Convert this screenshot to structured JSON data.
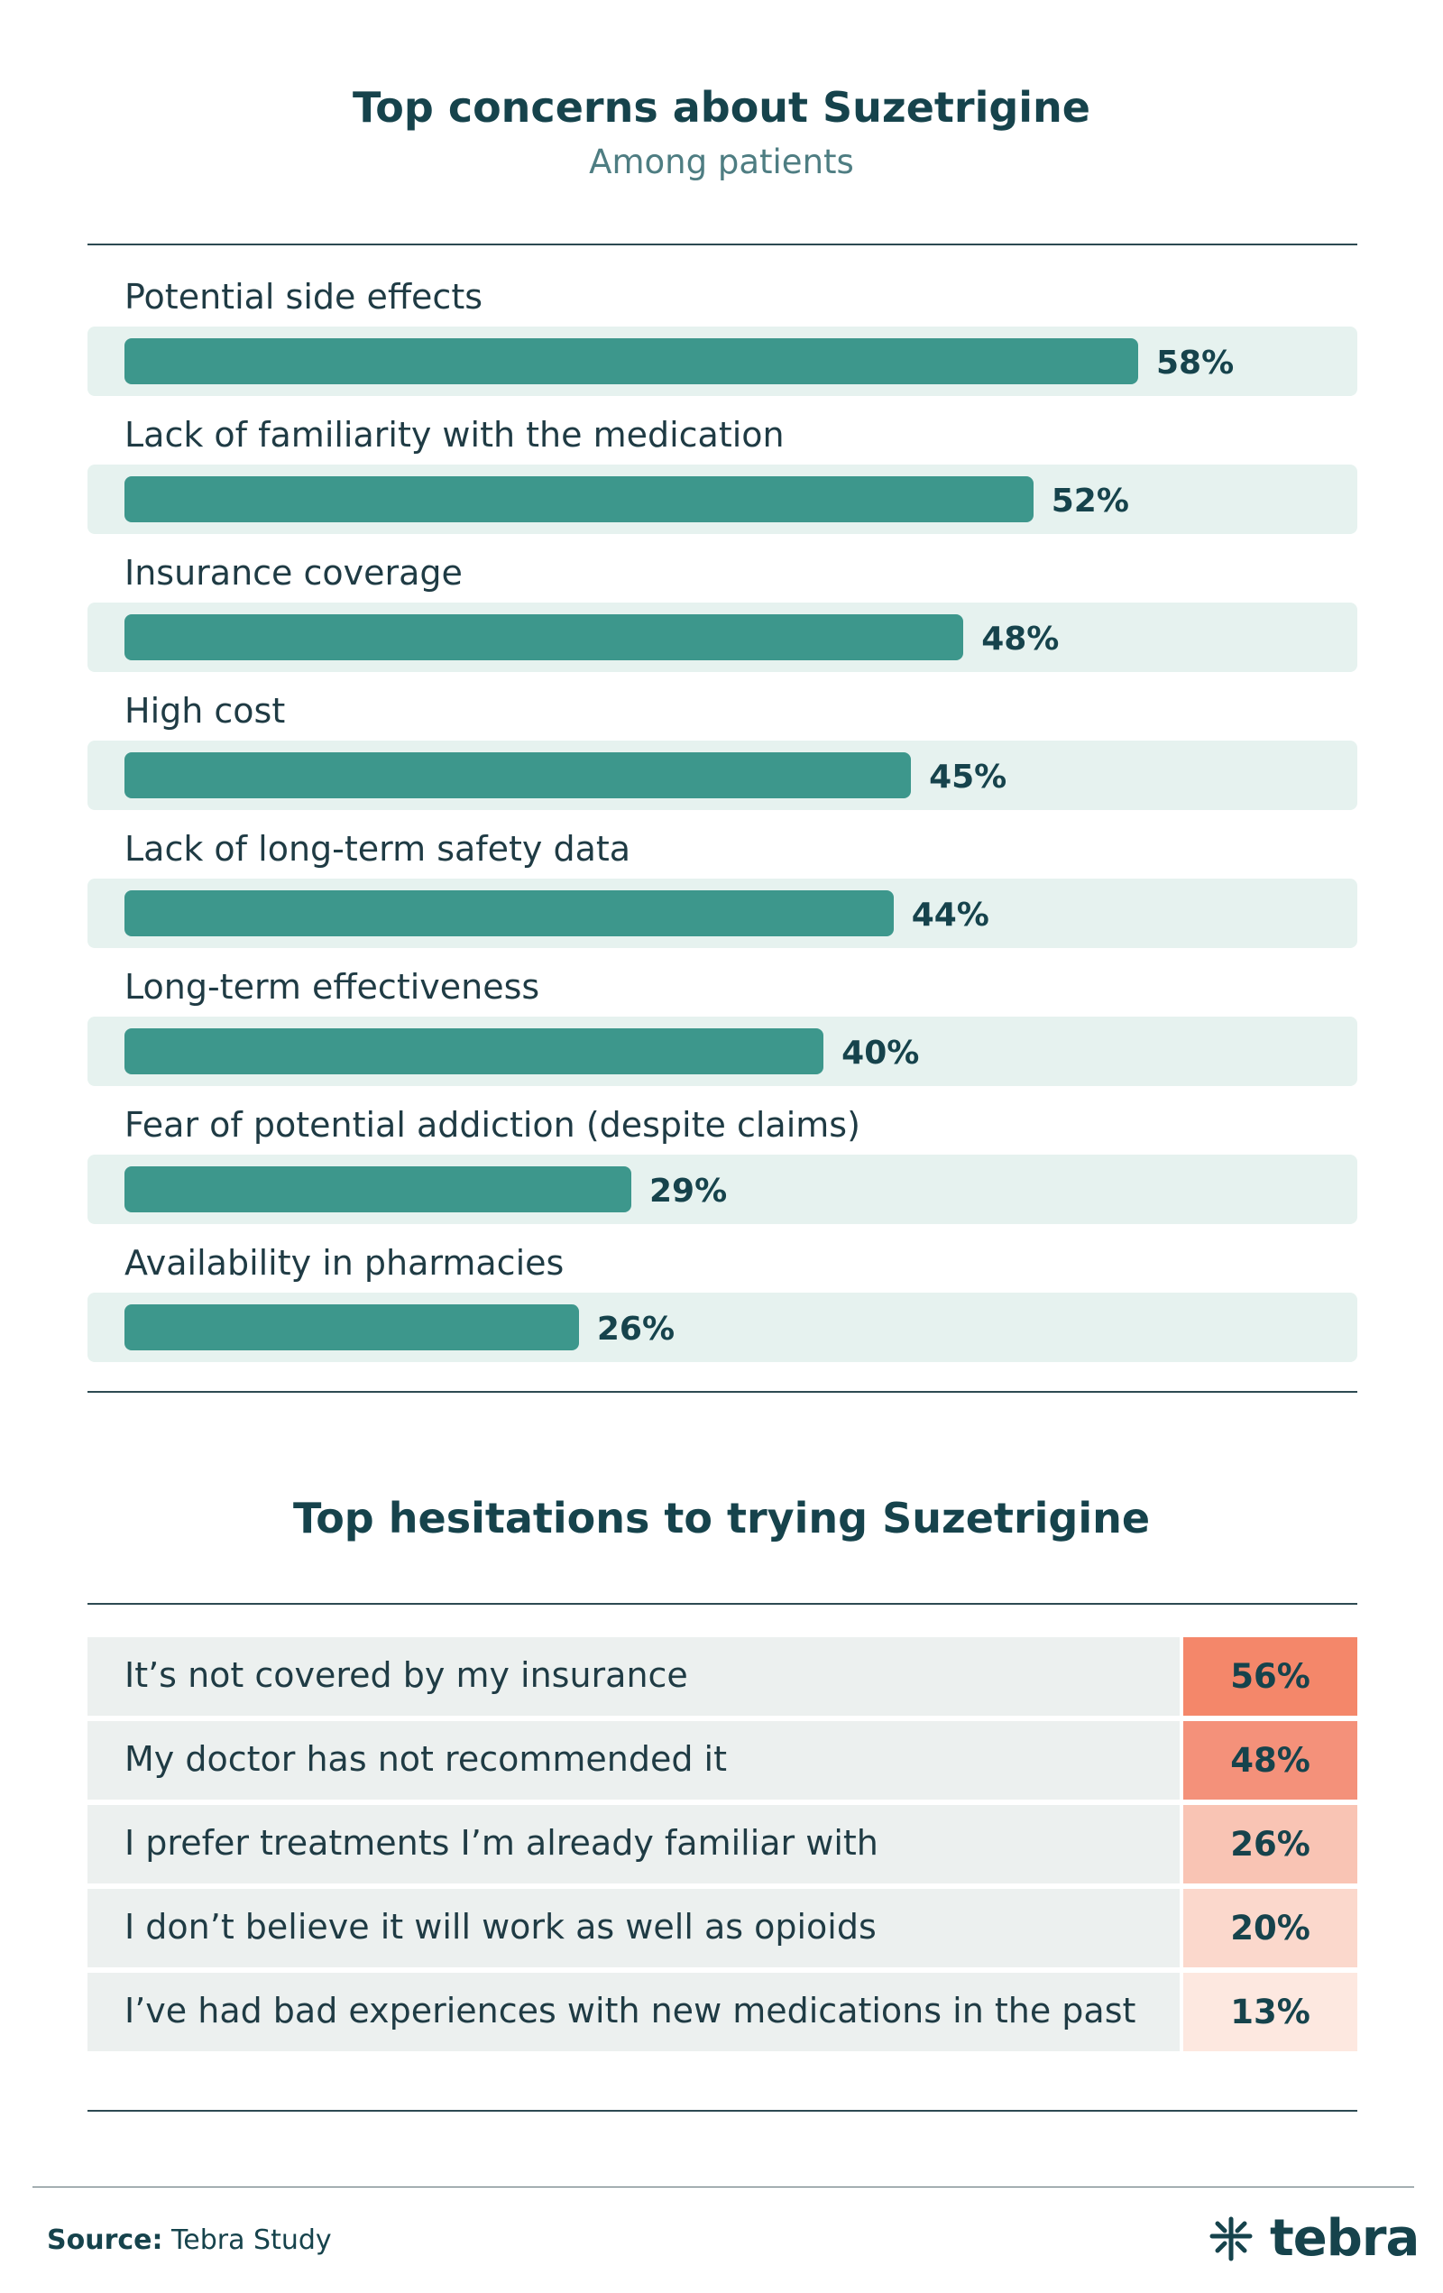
{
  "concerns": {
    "title": "Top concerns about Suzetrigine",
    "subtitle": "Among patients"
  },
  "hesitations": {
    "title": "Top hesitations to trying Suzetrigine"
  },
  "chart_data": [
    {
      "type": "bar",
      "orientation": "horizontal",
      "title": "Top concerns about Suzetrigine",
      "subtitle": "Among patients",
      "categories": [
        "Potential side effects",
        "Lack of familiarity with the medication",
        "Insurance coverage",
        "High cost",
        "Lack of long-term safety data",
        "Long-term effectiveness",
        "Fear of potential addiction (despite claims)",
        "Availability in pharmacies"
      ],
      "values": [
        58,
        52,
        48,
        45,
        44,
        40,
        29,
        26
      ],
      "value_labels": [
        "58%",
        "52%",
        "48%",
        "45%",
        "44%",
        "40%",
        "29%",
        "26%"
      ],
      "unit": "%",
      "bar_color": "#3d978c",
      "track_color": "#e6f2ef"
    },
    {
      "type": "table",
      "title": "Top hesitations to trying Suzetrigine",
      "categories": [
        "It’s not covered by my insurance",
        "My doctor has not recommended it",
        "I prefer treatments I’m already familiar with",
        "I don’t believe it will work as well as opioids",
        "I’ve had bad experiences with new medications in the past"
      ],
      "values": [
        56,
        48,
        26,
        20,
        13
      ],
      "value_labels": [
        "56%",
        "48%",
        "26%",
        "20%",
        "13%"
      ],
      "unit": "%",
      "cell_colors": [
        "#f4876a",
        "#f4917a",
        "#f9c4b4",
        "#fbd8cc",
        "#fde8e0"
      ]
    }
  ],
  "footer": {
    "source_key": "Source:",
    "source_value": "Tebra Study",
    "logo_text": "tebra"
  }
}
